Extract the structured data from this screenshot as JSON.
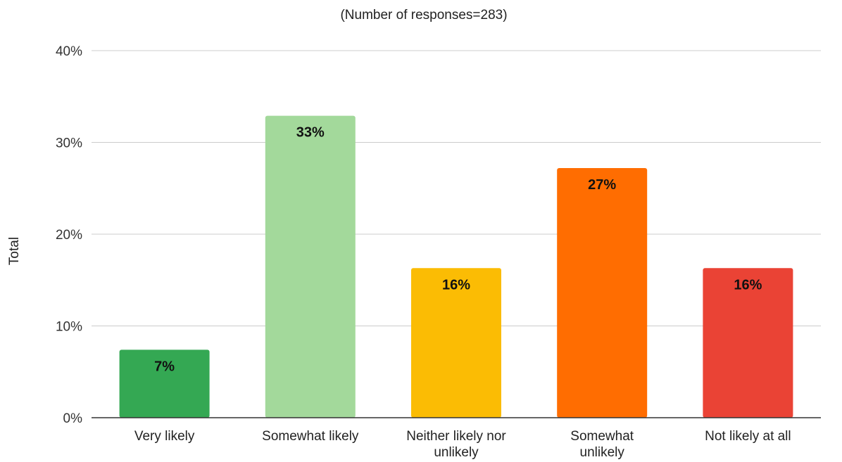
{
  "chart_data": {
    "type": "bar",
    "subtitle": "(Number of responses=283)",
    "ylabel": "Total",
    "xlabel": "",
    "ylim": [
      0,
      40
    ],
    "yticks": [
      0,
      10,
      20,
      30,
      40
    ],
    "ytick_labels": [
      "0%",
      "10%",
      "20%",
      "30%",
      "40%"
    ],
    "grid": true,
    "legend": "none",
    "categories": [
      "Very likely",
      "Somewhat likely",
      "Neither likely nor unlikely",
      "Somewhat unlikely",
      "Not likely at all"
    ],
    "category_lines": [
      [
        "Very likely"
      ],
      [
        "Somewhat likely"
      ],
      [
        "Neither likely nor",
        "unlikely"
      ],
      [
        "Somewhat",
        "unlikely"
      ],
      [
        "Not likely at all"
      ]
    ],
    "values": [
      7.4,
      32.9,
      16.3,
      27.2,
      16.3
    ],
    "data_labels": [
      "7%",
      "33%",
      "16%",
      "27%",
      "16%"
    ],
    "colors": [
      "#34a853",
      "#a3d99b",
      "#fbbc04",
      "#ff6d01",
      "#ea4335"
    ]
  }
}
